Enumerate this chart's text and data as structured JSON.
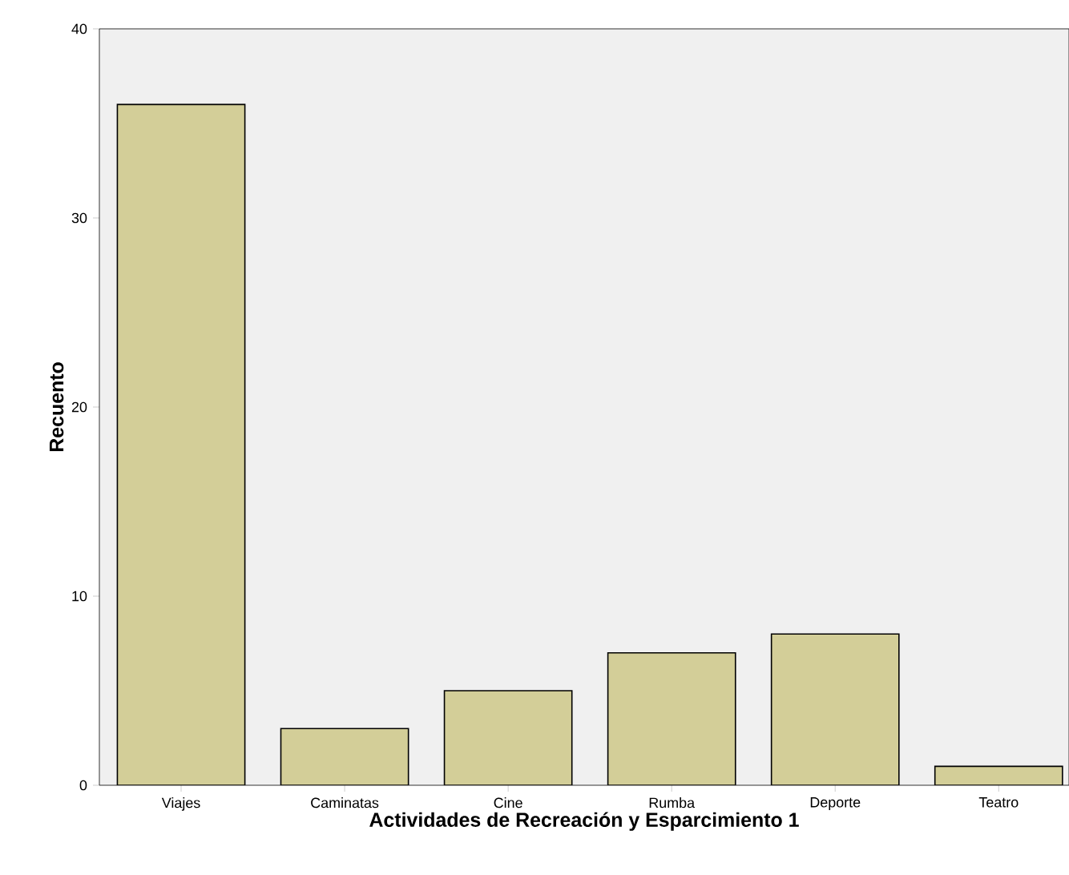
{
  "chart_data": {
    "type": "bar",
    "xlabel": "Actividades de Recreación y Esparcimiento 1",
    "ylabel": "Recuento",
    "categories": [
      "Viajes",
      "Caminatas",
      "Cine",
      "Rumba",
      "Deporte",
      "Teatro"
    ],
    "values": [
      36,
      3,
      5,
      7,
      8,
      1
    ],
    "color": "#d3ce98",
    "ylim": [
      0,
      40
    ],
    "yticks": [
      0,
      10,
      20,
      30,
      40
    ]
  }
}
